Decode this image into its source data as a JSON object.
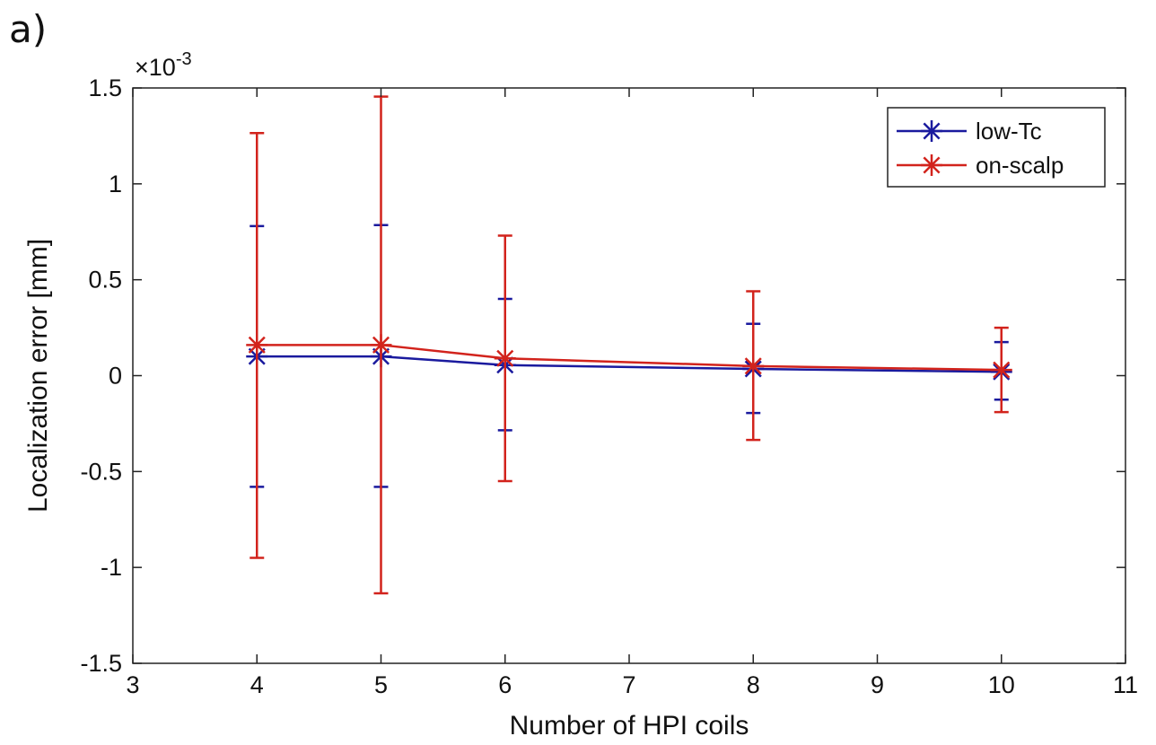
{
  "panel_label": "a)",
  "chart_data": {
    "type": "line",
    "title": "",
    "xlabel": "Number of HPI coils",
    "ylabel": "Localization error [mm]",
    "y_exponent_label": "×10",
    "y_exponent_power": "-3",
    "xlim": [
      3,
      11
    ],
    "ylim": [
      -1.5,
      1.5
    ],
    "x_ticks": [
      3,
      4,
      5,
      6,
      7,
      8,
      9,
      10,
      11
    ],
    "x_tick_labels": [
      "3",
      "4",
      "5",
      "6",
      "7",
      "8",
      "9",
      "10",
      "11"
    ],
    "y_ticks": [
      1.5,
      1,
      0.5,
      0,
      -0.5,
      -1,
      -1.5
    ],
    "y_tick_labels": [
      "1.5",
      "1",
      "0.5",
      "0",
      "-0.5",
      "-1",
      "-1.5"
    ],
    "x": [
      4,
      5,
      6,
      8,
      10
    ],
    "grid": false,
    "legend_position": "top-right",
    "series": [
      {
        "name": "low-Tc",
        "color": "#1a1a9e",
        "marker": "asterisk",
        "values": [
          0.1,
          0.1,
          0.055,
          0.035,
          0.02
        ],
        "err_low": [
          -0.58,
          -0.58,
          -0.285,
          -0.195,
          -0.125
        ],
        "err_high": [
          0.78,
          0.785,
          0.4,
          0.27,
          0.175
        ]
      },
      {
        "name": "on-scalp",
        "color": "#d2231c",
        "marker": "asterisk",
        "values": [
          0.16,
          0.16,
          0.09,
          0.05,
          0.03
        ],
        "err_low": [
          -0.95,
          -1.135,
          -0.55,
          -0.335,
          -0.19
        ],
        "err_high": [
          1.265,
          1.455,
          0.73,
          0.44,
          0.25
        ]
      }
    ]
  }
}
